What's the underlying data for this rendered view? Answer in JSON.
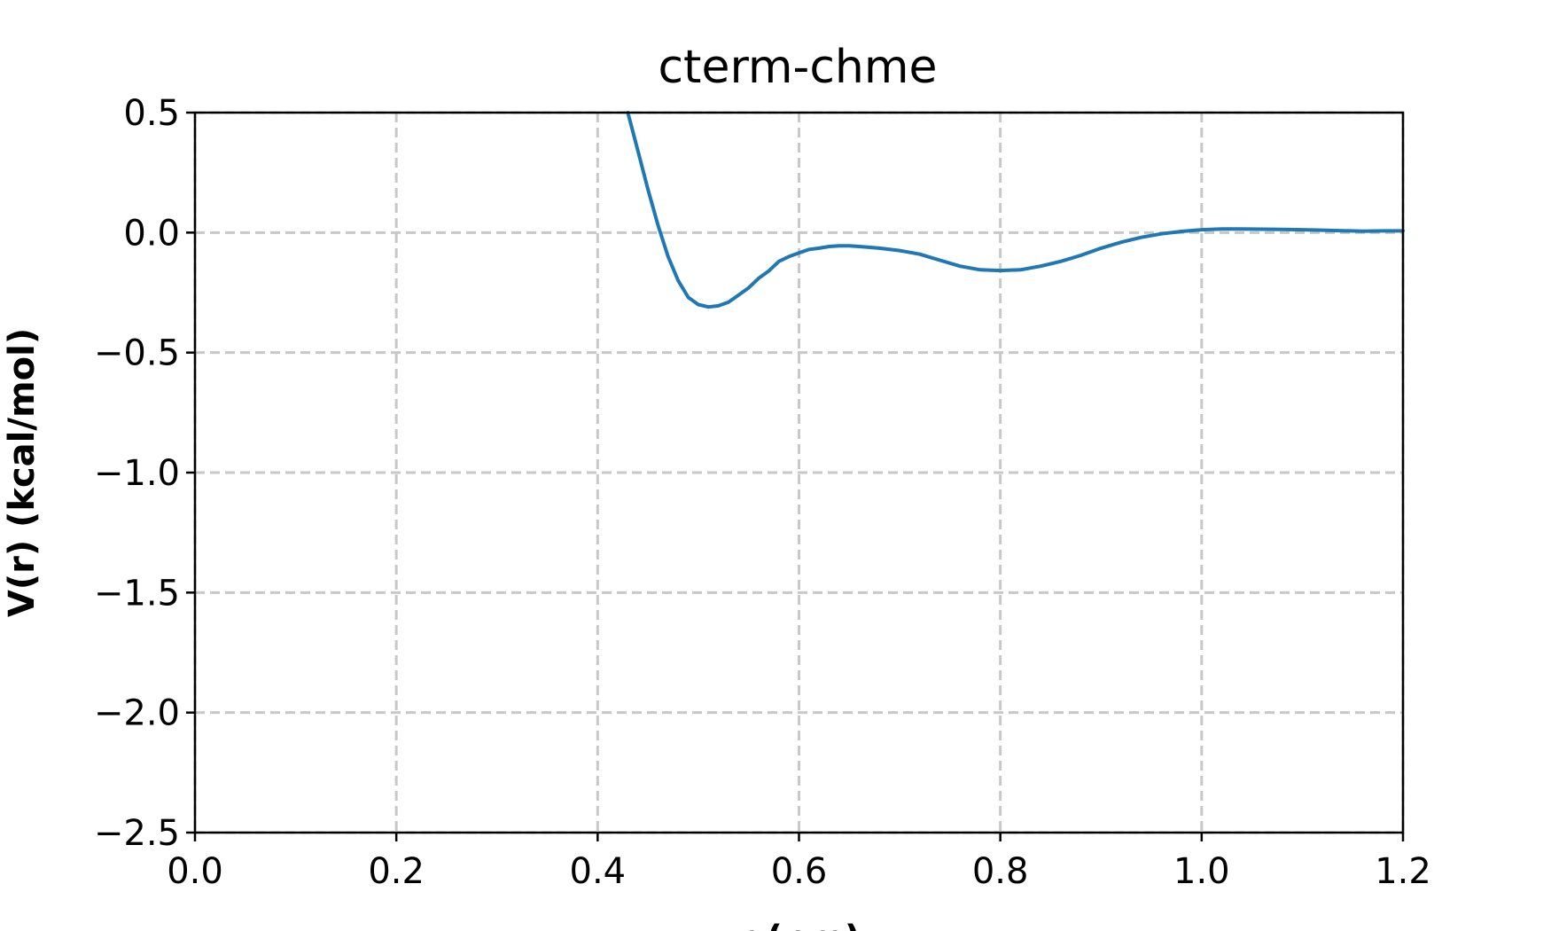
{
  "chart_data": {
    "type": "line",
    "title": "cterm-chme",
    "xlabel": "r (nm)",
    "ylabel": "V(r) (kcal/mol)",
    "xlim": [
      0.0,
      1.2
    ],
    "ylim": [
      -2.5,
      0.5
    ],
    "xticks": [
      0.0,
      0.2,
      0.4,
      0.6,
      0.8,
      1.0,
      1.2
    ],
    "xtick_labels": [
      "0.0",
      "0.2",
      "0.4",
      "0.6",
      "0.8",
      "1.0",
      "1.2"
    ],
    "yticks": [
      0.5,
      0.0,
      -0.5,
      -1.0,
      -1.5,
      -2.0,
      -2.5
    ],
    "ytick_labels": [
      "0.5",
      "0.0",
      "−0.5",
      "−1.0",
      "−1.5",
      "−2.0",
      "−2.5"
    ],
    "grid": true,
    "series": [
      {
        "color": "#1f77b4",
        "x": [
          0.43,
          0.44,
          0.45,
          0.46,
          0.47,
          0.48,
          0.49,
          0.5,
          0.51,
          0.52,
          0.53,
          0.54,
          0.55,
          0.56,
          0.57,
          0.58,
          0.59,
          0.6,
          0.61,
          0.62,
          0.63,
          0.64,
          0.65,
          0.66,
          0.68,
          0.7,
          0.72,
          0.74,
          0.76,
          0.78,
          0.8,
          0.82,
          0.84,
          0.86,
          0.88,
          0.9,
          0.92,
          0.94,
          0.96,
          0.98,
          1.0,
          1.02,
          1.04,
          1.06,
          1.08,
          1.1,
          1.12,
          1.14,
          1.16,
          1.18,
          1.2
        ],
        "y": [
          0.5,
          0.34,
          0.18,
          0.03,
          -0.1,
          -0.2,
          -0.27,
          -0.3,
          -0.31,
          -0.305,
          -0.29,
          -0.26,
          -0.23,
          -0.19,
          -0.16,
          -0.12,
          -0.1,
          -0.085,
          -0.07,
          -0.065,
          -0.058,
          -0.055,
          -0.055,
          -0.058,
          -0.065,
          -0.075,
          -0.09,
          -0.115,
          -0.14,
          -0.155,
          -0.158,
          -0.155,
          -0.14,
          -0.12,
          -0.095,
          -0.065,
          -0.04,
          -0.02,
          -0.005,
          0.005,
          0.012,
          0.015,
          0.015,
          0.014,
          0.013,
          0.012,
          0.01,
          0.008,
          0.006,
          0.007,
          0.007
        ]
      }
    ]
  }
}
